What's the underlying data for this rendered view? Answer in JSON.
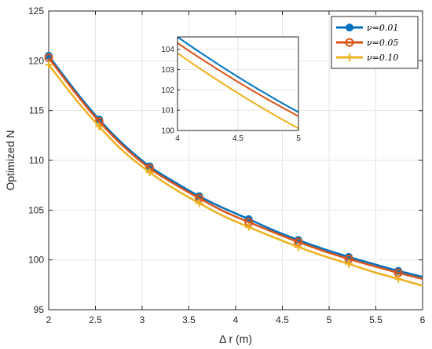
{
  "chart_data": {
    "type": "line",
    "title": "",
    "xlabel": "Δ r (m)",
    "ylabel": "Optimized N",
    "xlim": [
      2,
      6
    ],
    "ylim": [
      95,
      125
    ],
    "xticks": [
      "2",
      "2.5",
      "3",
      "3.5",
      "4",
      "4.5",
      "5",
      "5.5",
      "6"
    ],
    "yticks": [
      "95",
      "100",
      "105",
      "110",
      "115",
      "120",
      "125"
    ],
    "grid": true,
    "legend_position": "top-right",
    "series": [
      {
        "name": "ν=0.01",
        "color": "#0072BD",
        "marker": "filled-circle",
        "x": [
          2.0,
          2.3,
          2.54,
          2.8,
          3.08,
          3.35,
          3.61,
          3.87,
          4.14,
          4.4,
          4.67,
          4.94,
          5.21,
          5.47,
          5.74,
          6.0
        ],
        "y": [
          120.5,
          116.8,
          114.1,
          111.6,
          109.4,
          107.8,
          106.4,
          105.2,
          104.1,
          103.0,
          102.0,
          101.1,
          100.3,
          99.6,
          98.9,
          98.3
        ]
      },
      {
        "name": "ν=0.05",
        "color": "#D95319",
        "marker": "open-circle",
        "x": [
          2.0,
          2.3,
          2.54,
          2.8,
          3.08,
          3.35,
          3.61,
          3.87,
          4.14,
          4.4,
          4.67,
          4.94,
          5.21,
          5.47,
          5.74,
          6.0
        ],
        "y": [
          120.3,
          116.6,
          113.9,
          111.4,
          109.2,
          107.6,
          106.2,
          104.9,
          103.8,
          102.8,
          101.8,
          100.9,
          100.1,
          99.4,
          98.7,
          98.1
        ]
      },
      {
        "name": "ν=0.10",
        "color": "#EDB120",
        "marker": "plus",
        "x": [
          2.0,
          2.3,
          2.54,
          2.8,
          3.08,
          3.35,
          3.61,
          3.87,
          4.14,
          4.4,
          4.67,
          4.94,
          5.21,
          5.47,
          5.74,
          6.0
        ],
        "y": [
          119.6,
          116.0,
          113.4,
          110.9,
          108.8,
          107.1,
          105.7,
          104.4,
          103.3,
          102.3,
          101.3,
          100.4,
          99.6,
          98.8,
          98.1,
          97.4
        ]
      }
    ],
    "inset": {
      "xlim": [
        4,
        5
      ],
      "ylim": [
        100,
        104.6
      ],
      "xticks": [
        "4",
        "4.5",
        "5"
      ],
      "yticks": [
        "100",
        "101",
        "102",
        "103",
        "104"
      ],
      "series_y_at_xlim": [
        [
          104.6,
          100.9
        ],
        [
          104.3,
          100.7
        ],
        [
          103.8,
          100.1
        ]
      ]
    }
  }
}
